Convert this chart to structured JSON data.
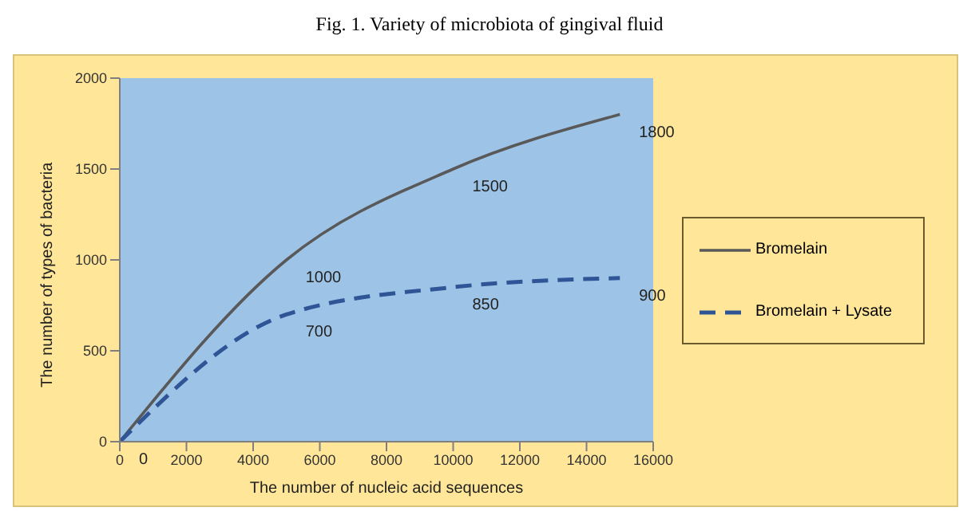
{
  "chart_data": {
    "type": "line",
    "title": "Fig. 1. Variety of microbiota of gingival fluid",
    "xlabel": "The number of nucleic acid sequences",
    "ylabel": "The number of types of bacteria",
    "x": [
      0,
      5000,
      10000,
      15000
    ],
    "series": [
      {
        "name": "Bromelain",
        "color": "#595959",
        "line_style": "solid",
        "values": [
          0,
          1000,
          1500,
          1800
        ],
        "value_labels": [
          "0",
          "1000",
          "1500",
          "1800"
        ]
      },
      {
        "name": "Bromelain + Lysate",
        "color": "#2f5597",
        "line_style": "dashed",
        "values": [
          0,
          700,
          850,
          900
        ],
        "value_labels": [
          null,
          "700",
          "850",
          "900"
        ]
      }
    ],
    "xlim": [
      0,
      16000
    ],
    "xticks": [
      0,
      2000,
      4000,
      6000,
      8000,
      10000,
      12000,
      14000,
      16000
    ],
    "ylim": [
      0,
      2000
    ],
    "yticks": [
      0,
      500,
      1000,
      1500,
      2000
    ],
    "grid": false,
    "legend": "right",
    "marker": "none"
  }
}
